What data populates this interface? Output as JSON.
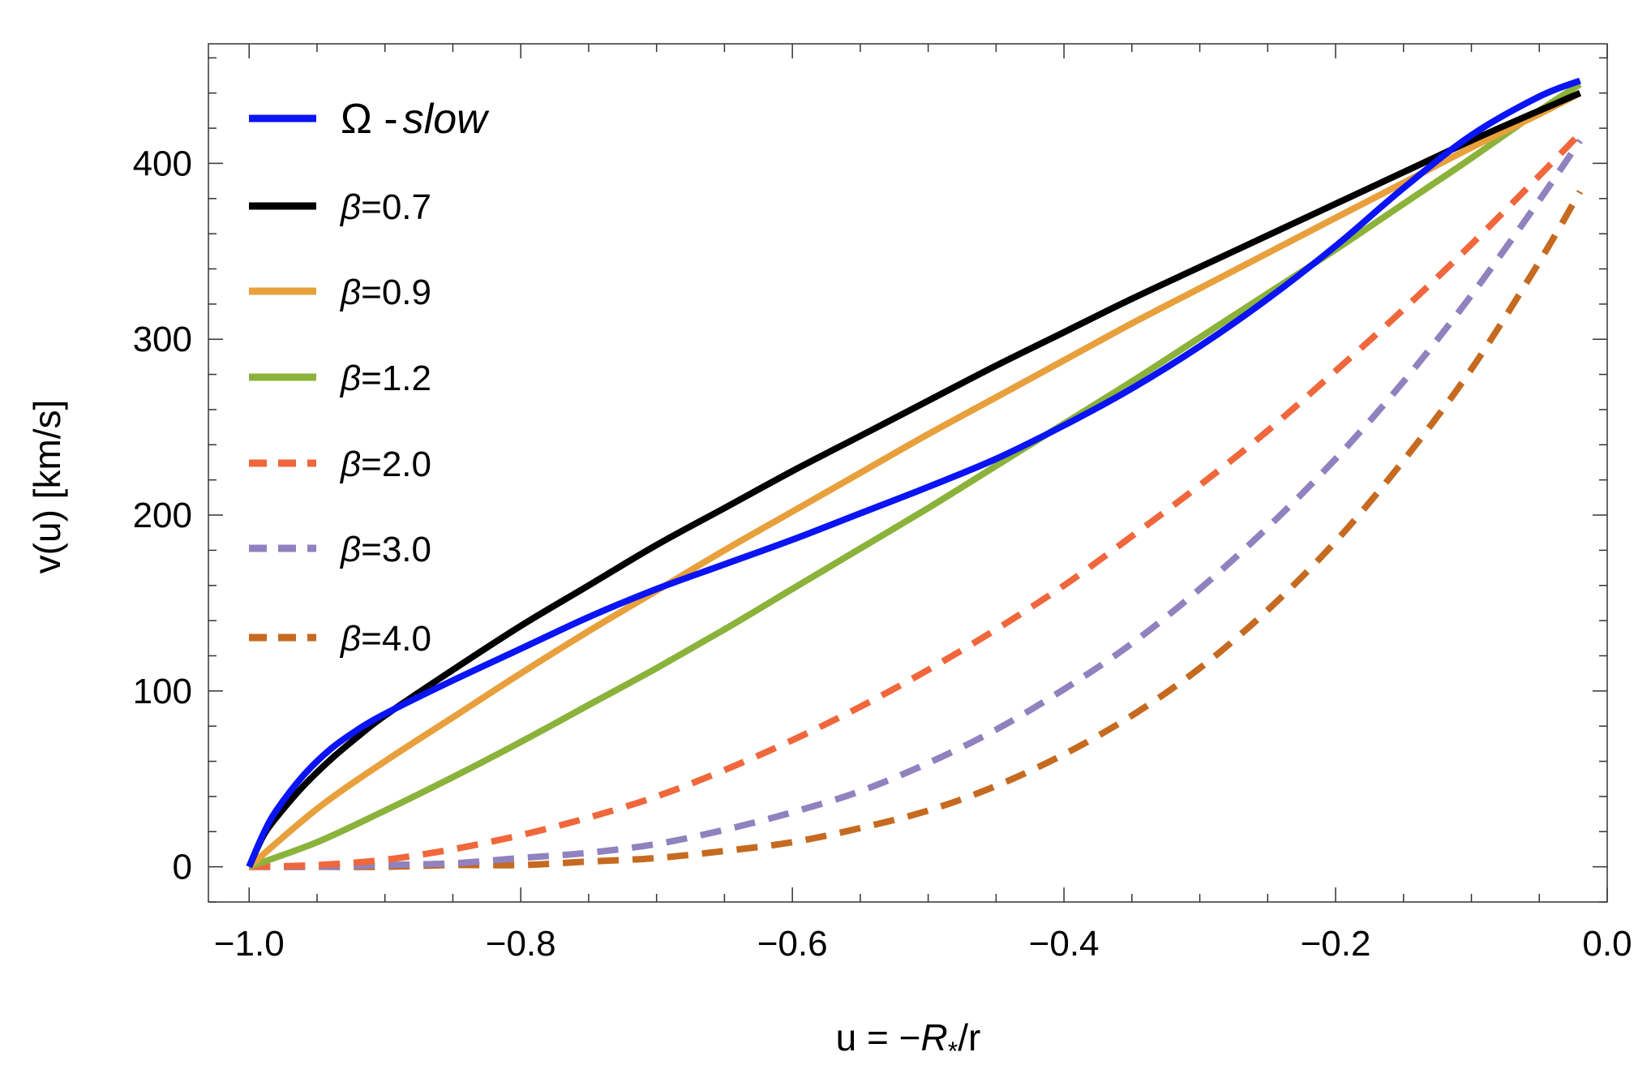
{
  "chart_data": {
    "type": "line",
    "title": "",
    "xlabel_prefix": "u = −",
    "xlabel_var": "R",
    "xlabel_sub": "*",
    "xlabel_suffix": "/r",
    "ylabel": "v(u)  [km/s]",
    "xlim": [
      -1.03,
      0.0
    ],
    "ylim": [
      -20,
      468
    ],
    "x_ticks": [
      -1.0,
      -0.8,
      -0.6,
      -0.4,
      -0.2,
      0.0
    ],
    "x_tick_labels": [
      "−1.0",
      "−0.8",
      "−0.6",
      "−0.4",
      "−0.2",
      "0.0"
    ],
    "y_ticks": [
      0,
      100,
      200,
      300,
      400
    ],
    "y_tick_labels": [
      "0",
      "100",
      "200",
      "300",
      "400"
    ],
    "legend_position": "top-left",
    "series": [
      {
        "name": "Ω-slow",
        "legend_symbol": "Ω",
        "legend_text": " -",
        "legend_italic": "slow",
        "color": "#0a14f5",
        "dashed": false,
        "x": [
          -1.0,
          -0.99,
          -0.98,
          -0.96,
          -0.94,
          -0.92,
          -0.9,
          -0.85,
          -0.8,
          -0.75,
          -0.7,
          -0.65,
          -0.6,
          -0.55,
          -0.5,
          -0.45,
          -0.4,
          -0.35,
          -0.3,
          -0.25,
          -0.2,
          -0.15,
          -0.1,
          -0.05,
          -0.02
        ],
        "y": [
          0,
          18,
          32,
          52,
          67,
          78,
          87,
          106,
          124,
          142,
          158,
          172,
          186,
          201,
          216,
          232,
          251,
          272,
          296,
          323,
          353,
          386,
          416,
          438,
          447
        ]
      },
      {
        "name": "β=0.7",
        "color": "#000000",
        "dashed": false,
        "x": [
          -1.0,
          -0.99,
          -0.98,
          -0.96,
          -0.94,
          -0.92,
          -0.9,
          -0.85,
          -0.8,
          -0.75,
          -0.7,
          -0.65,
          -0.6,
          -0.55,
          -0.5,
          -0.45,
          -0.4,
          -0.35,
          -0.3,
          -0.25,
          -0.2,
          -0.15,
          -0.1,
          -0.05,
          -0.02
        ],
        "y": [
          0,
          17,
          28,
          46,
          61,
          74,
          86,
          112,
          137,
          160,
          183,
          204,
          225,
          245,
          265,
          285,
          304,
          323,
          341,
          359,
          377,
          395,
          413,
          430,
          440
        ]
      },
      {
        "name": "β=0.9",
        "color": "#e8a03c",
        "dashed": false,
        "x": [
          -1.0,
          -0.95,
          -0.9,
          -0.85,
          -0.8,
          -0.75,
          -0.7,
          -0.65,
          -0.6,
          -0.55,
          -0.5,
          -0.45,
          -0.4,
          -0.35,
          -0.3,
          -0.25,
          -0.2,
          -0.15,
          -0.1,
          -0.05,
          -0.02
        ],
        "y": [
          0,
          33,
          60,
          85,
          110,
          134,
          157,
          180,
          202,
          224,
          246,
          267,
          288,
          309,
          329,
          349,
          369,
          389,
          409,
          428,
          440
        ]
      },
      {
        "name": "β=1.2",
        "color": "#8bb23a",
        "dashed": false,
        "x": [
          -1.0,
          -0.95,
          -0.9,
          -0.85,
          -0.8,
          -0.75,
          -0.7,
          -0.65,
          -0.6,
          -0.55,
          -0.5,
          -0.45,
          -0.4,
          -0.35,
          -0.3,
          -0.25,
          -0.2,
          -0.15,
          -0.1,
          -0.05,
          -0.02
        ],
        "y": [
          0,
          14,
          32,
          51,
          71,
          92,
          113,
          135,
          158,
          181,
          204,
          228,
          252,
          276,
          301,
          326,
          351,
          377,
          403,
          430,
          445
        ]
      },
      {
        "name": "β=2.0",
        "color": "#f0673c",
        "dashed": true,
        "x": [
          -1.0,
          -0.95,
          -0.9,
          -0.85,
          -0.8,
          -0.75,
          -0.7,
          -0.65,
          -0.6,
          -0.55,
          -0.5,
          -0.45,
          -0.4,
          -0.35,
          -0.3,
          -0.25,
          -0.2,
          -0.15,
          -0.1,
          -0.05,
          -0.02
        ],
        "y": [
          0,
          1,
          4,
          10,
          18,
          28,
          40,
          55,
          72,
          91,
          112,
          135,
          160,
          188,
          217,
          248,
          282,
          317,
          354,
          393,
          417
        ]
      },
      {
        "name": "β=3.0",
        "color": "#8f82bf",
        "dashed": true,
        "x": [
          -1.0,
          -0.95,
          -0.9,
          -0.85,
          -0.8,
          -0.75,
          -0.7,
          -0.65,
          -0.6,
          -0.55,
          -0.5,
          -0.45,
          -0.4,
          -0.35,
          -0.3,
          -0.25,
          -0.2,
          -0.15,
          -0.1,
          -0.05,
          -0.02
        ],
        "y": [
          0,
          0,
          1,
          2,
          5,
          8,
          13,
          21,
          31,
          43,
          59,
          78,
          101,
          127,
          158,
          193,
          232,
          276,
          325,
          379,
          413
        ]
      },
      {
        "name": "β=4.0",
        "color": "#c66a20",
        "dashed": true,
        "x": [
          -1.0,
          -0.95,
          -0.9,
          -0.85,
          -0.8,
          -0.75,
          -0.7,
          -0.65,
          -0.6,
          -0.55,
          -0.5,
          -0.45,
          -0.4,
          -0.35,
          -0.3,
          -0.25,
          -0.2,
          -0.15,
          -0.1,
          -0.05,
          -0.02
        ],
        "y": [
          0,
          0,
          0,
          1,
          1,
          3,
          5,
          9,
          14,
          22,
          32,
          46,
          64,
          86,
          113,
          146,
          185,
          231,
          283,
          344,
          384
        ]
      }
    ]
  }
}
